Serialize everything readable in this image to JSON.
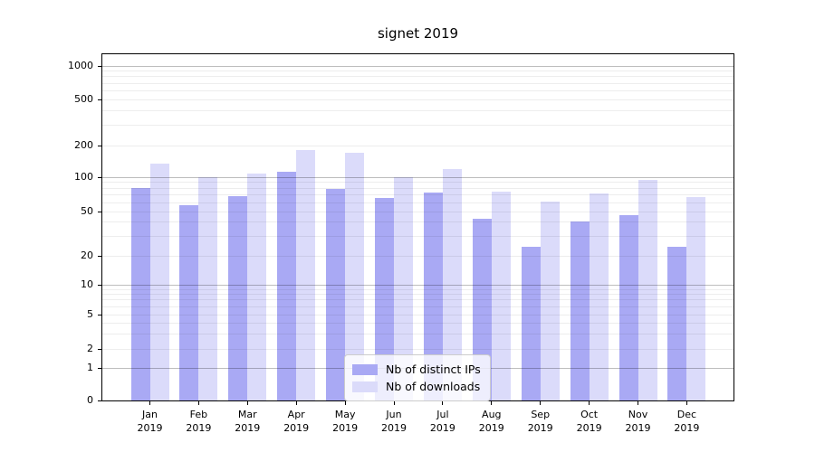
{
  "title": "signet 2019",
  "legend": {
    "items": [
      {
        "label": "Nb of distinct IPs",
        "color": "#a9a9f4"
      },
      {
        "label": "Nb of downloads",
        "color": "#dbdbfa"
      }
    ]
  },
  "chart_data": {
    "type": "bar",
    "title": "signet 2019",
    "categories": [
      "Jan",
      "Feb",
      "Mar",
      "Apr",
      "May",
      "Jun",
      "Jul",
      "Aug",
      "Sep",
      "Oct",
      "Nov",
      "Dec"
    ],
    "category_year": "2019",
    "series": [
      {
        "name": "Nb of distinct IPs",
        "color": "#a9a9f4",
        "values": [
          80,
          57,
          68,
          113,
          79,
          66,
          73,
          43,
          24,
          41,
          46,
          24
        ]
      },
      {
        "name": "Nb of downloads",
        "color": "#dbdbfa",
        "values": [
          135,
          100,
          108,
          180,
          170,
          100,
          120,
          75,
          61,
          72,
          94,
          67
        ]
      }
    ],
    "yscale": "symlog",
    "y_ticks": [
      0,
      1,
      2,
      5,
      10,
      20,
      50,
      100,
      200,
      500,
      1000
    ],
    "ylim": [
      0,
      1300
    ],
    "grid": true,
    "legend_position": "lower center"
  }
}
